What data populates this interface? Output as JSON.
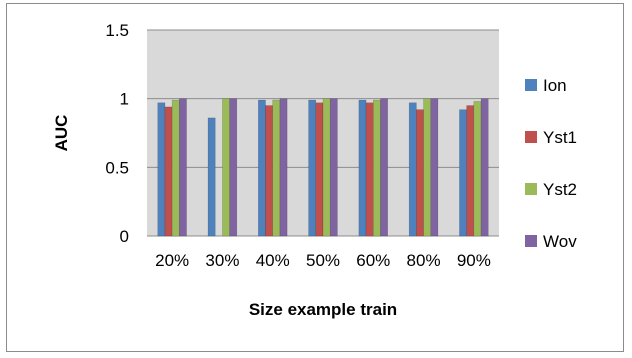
{
  "chart_data": {
    "type": "bar",
    "title": "",
    "xlabel": "Size example train",
    "ylabel": "AUC",
    "ylim": [
      0,
      1.5
    ],
    "y_ticks": [
      "0",
      "0.5",
      "1",
      "1.5"
    ],
    "grid": "horizontal",
    "legend_position": "right",
    "categories": [
      "20%",
      "30%",
      "40%",
      "50%",
      "60%",
      "80%",
      "90%"
    ],
    "series": [
      {
        "name": "Ion",
        "color": "#4f81bd",
        "values": [
          0.97,
          0.86,
          0.99,
          0.99,
          0.99,
          0.97,
          0.92
        ]
      },
      {
        "name": "Yst1",
        "color": "#c0504d",
        "values": [
          0.94,
          0.0,
          0.95,
          0.97,
          0.97,
          0.92,
          0.95
        ]
      },
      {
        "name": "Yst2",
        "color": "#9bbb59",
        "values": [
          0.99,
          1.0,
          0.99,
          1.0,
          0.99,
          1.0,
          0.98
        ]
      },
      {
        "name": "Wov",
        "color": "#8064a2",
        "values": [
          1.0,
          1.0,
          1.0,
          1.0,
          1.0,
          1.0,
          1.0
        ]
      }
    ],
    "plot_background": "#d9d9d9"
  }
}
